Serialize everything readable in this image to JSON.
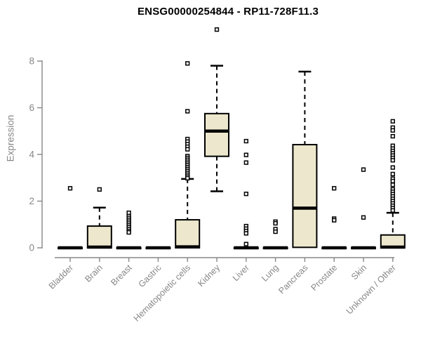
{
  "chart_data": {
    "type": "boxplot",
    "title": "ENSG00000254844 - RP11-728F11.3",
    "xlabel": "",
    "ylabel": "Expression",
    "ylim": [
      0,
      9.6
    ],
    "yticks": [
      0,
      2,
      4,
      6,
      8
    ],
    "grid": false,
    "legend": "none",
    "categories": [
      "Bladder",
      "Brain",
      "Breast",
      "Gastric",
      "Hematopoietic cells",
      "Kidney",
      "Liver",
      "Lung",
      "Pancreas",
      "Prostate",
      "Skin",
      "Unknown / Other"
    ],
    "boxes": [
      {
        "category": "Bladder",
        "whisker_low": 0,
        "q1": 0,
        "median": 0,
        "q3": 0,
        "whisker_high": 0,
        "outliers": [
          2.55
        ]
      },
      {
        "category": "Brain",
        "whisker_low": 0,
        "q1": 0,
        "median": 0.03,
        "q3": 0.93,
        "whisker_high": 1.72,
        "outliers": [
          2.5
        ]
      },
      {
        "category": "Breast",
        "whisker_low": 0,
        "q1": 0,
        "median": 0,
        "q3": 0,
        "whisker_high": 0,
        "outliers": [
          1.5,
          1.36,
          1.28,
          1.2,
          1.12,
          1.04,
          0.96,
          0.88,
          0.8,
          0.72,
          0.66
        ]
      },
      {
        "category": "Gastric",
        "whisker_low": 0,
        "q1": 0,
        "median": 0,
        "q3": 0,
        "whisker_high": 0,
        "outliers": []
      },
      {
        "category": "Hematopoietic cells",
        "whisker_low": 0,
        "q1": 0,
        "median": 0.04,
        "q3": 1.2,
        "whisker_high": 2.95,
        "outliers": [
          7.9,
          5.85,
          4.66,
          4.55,
          4.44,
          4.33,
          4.22,
          3.93,
          3.85,
          3.77,
          3.69,
          3.61,
          3.53,
          3.45,
          3.37,
          3.29,
          3.21,
          3.13,
          3.05,
          2.98
        ]
      },
      {
        "category": "Kidney",
        "whisker_low": 2.42,
        "q1": 3.92,
        "median": 5.0,
        "q3": 5.75,
        "whisker_high": 7.8,
        "outliers": [
          9.35
        ]
      },
      {
        "category": "Liver",
        "whisker_low": 0,
        "q1": 0,
        "median": 0,
        "q3": 0,
        "whisker_high": 0,
        "outliers": [
          4.57,
          3.98,
          3.65,
          2.31,
          0.93,
          0.82,
          0.72,
          0.62,
          0.16
        ]
      },
      {
        "category": "Lung",
        "whisker_low": 0,
        "q1": 0,
        "median": 0,
        "q3": 0,
        "whisker_high": 0,
        "outliers": [
          1.12,
          1.05,
          0.8,
          0.69
        ]
      },
      {
        "category": "Pancreas",
        "whisker_low": 0,
        "q1": 0.02,
        "median": 1.7,
        "q3": 4.42,
        "whisker_high": 7.55,
        "outliers": []
      },
      {
        "category": "Prostate",
        "whisker_low": 0,
        "q1": 0,
        "median": 0,
        "q3": 0,
        "whisker_high": 0,
        "outliers": [
          2.55,
          1.25,
          1.18
        ]
      },
      {
        "category": "Skin",
        "whisker_low": 0,
        "q1": 0,
        "median": 0,
        "q3": 0,
        "whisker_high": 0,
        "outliers": [
          3.35,
          1.3
        ]
      },
      {
        "category": "Unknown / Other",
        "whisker_low": 0,
        "q1": 0,
        "median": 0.03,
        "q3": 0.55,
        "whisker_high": 1.5,
        "outliers": [
          5.42,
          5.15,
          5.03,
          4.78,
          4.37,
          4.25,
          4.15,
          4.05,
          3.95,
          3.85,
          3.75,
          3.44,
          3.16,
          2.96,
          2.86,
          2.7,
          2.5,
          2.4,
          2.3,
          2.2,
          2.1,
          2.0,
          1.9,
          1.8,
          1.7,
          1.6
        ]
      }
    ],
    "style": {
      "box_fill": "#EDE8CD",
      "box_stroke": "#000000",
      "median_color": "#000000",
      "whisker_color": "#000000",
      "outlier_shape": "open-square",
      "axis_color": "#878787",
      "tick_label_color": "#878787",
      "title_color": "#000000",
      "background": "#FFFFFF"
    }
  }
}
